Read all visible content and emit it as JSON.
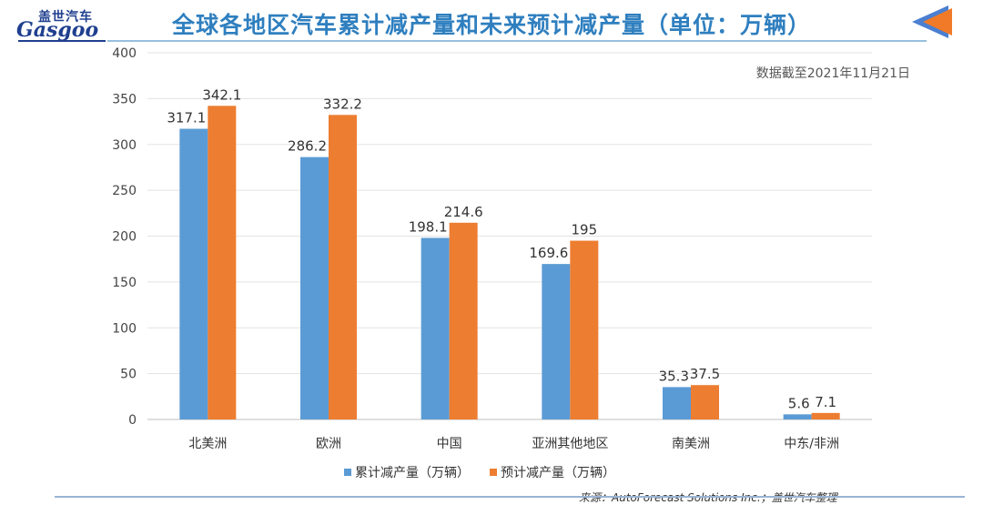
{
  "header": {
    "logo_cn": "盖世汽车",
    "logo_en": "Gasgoo",
    "title": "全球各地区汽车累计减产量和未来预计减产量（单位：万辆）",
    "date_note": "数据截至2021年11月21日"
  },
  "source_text": "来源：AutoForecast Solutions Inc.；盖世汽车整理",
  "colors": {
    "series1": "#5b9bd5",
    "series2": "#ed7d31",
    "title": "#2f7fbf"
  },
  "chart_data": {
    "type": "bar",
    "title": "全球各地区汽车累计减产量和未来预计减产量（单位：万辆）",
    "categories": [
      "北美洲",
      "欧洲",
      "中国",
      "亚洲其他地区",
      "南美洲",
      "中东/非洲"
    ],
    "series": [
      {
        "name": "累计减产量（万辆）",
        "values": [
          317.1,
          286.2,
          198.1,
          169.6,
          35.3,
          5.6
        ],
        "labels": [
          "317.1",
          "286.2",
          "198.1",
          "169.6",
          "35.3",
          "5.6"
        ]
      },
      {
        "name": "预计减产量（万辆）",
        "values": [
          342.1,
          332.2,
          214.6,
          195,
          37.5,
          7.1
        ],
        "labels": [
          "342.1",
          "332.2",
          "214.6",
          "195",
          "37.5",
          "7.1"
        ]
      }
    ],
    "ylim": [
      0,
      400
    ],
    "yticks": [
      "0",
      "50",
      "100",
      "150",
      "200",
      "250",
      "300",
      "350",
      "400"
    ],
    "grid": true,
    "legend": "bottom"
  }
}
